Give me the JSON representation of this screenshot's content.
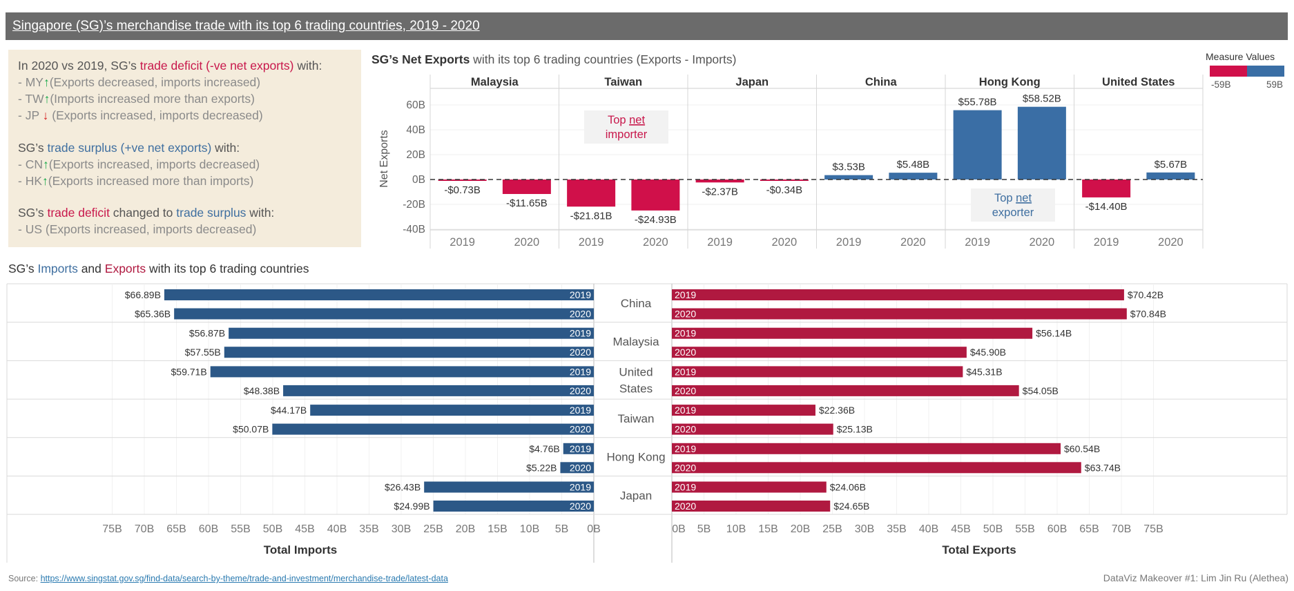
{
  "title": "Singapore (SG)’s merchandise trade with its top 6 trading countries, 2019 - 2020",
  "summary": {
    "deficit_intro": {
      "pre": "In 2020 vs 2019, SG’s ",
      "highlight": "trade deficit (-ve net exports)",
      "post": " with:"
    },
    "deficit_items": [
      {
        "code": "- MY",
        "arrow": "↑",
        "text": "(Exports decreased, imports increased)"
      },
      {
        "code": "- TW",
        "arrow": "↑",
        "text": "(Imports increased more than exports)"
      },
      {
        "code": "- JP",
        "arrow": "↓",
        "text": "(Exports increased, imports decreased)"
      }
    ],
    "surplus_intro": {
      "pre": "SG’s ",
      "highlight": "trade surplus (+ve net exports)",
      "post": " with:"
    },
    "surplus_items": [
      {
        "code": "- CN",
        "arrow": "↑",
        "text": "(Exports increased, imports decreased)"
      },
      {
        "code": "- HK",
        "arrow": "↑",
        "text": "(Exports increased more than imports)"
      }
    ],
    "change_intro": {
      "pre": "SG’s ",
      "hl1": "trade deficit",
      "mid": " changed to ",
      "hl2": "trade surplus",
      "post": " with:"
    },
    "change_item": "- US (Exports increased, imports decreased)"
  },
  "net_exports_title": {
    "bold": "SG’s Net Exports",
    "rest": " with its top 6 trading countries (Exports - Imports)"
  },
  "legend": {
    "title": "Measure Values",
    "min_label": "-59B",
    "max_label": "59B",
    "neg_color": "#d0104a",
    "pos_color": "#3a6ea5"
  },
  "main_title": {
    "pre": "SG’s ",
    "imports": "Imports",
    "mid": " and ",
    "exports": "Exports",
    "post": " with its top 6 trading countries"
  },
  "colors": {
    "import_bar": "#2c5887",
    "export_bar": "#b01940",
    "net_neg": "#d0104a",
    "net_pos": "#3a6ea5",
    "annot_red": "#c8174b",
    "annot_blue": "#3f6fa0"
  },
  "chart_data": [
    {
      "type": "bar",
      "title": "SG’s Net Exports with its top 6 trading countries (Exports - Imports)",
      "ylabel": "Net Exports",
      "ylim": [
        -45,
        75
      ],
      "yticks": [
        "60B",
        "40B",
        "20B",
        "0B",
        "-20B",
        "-40B"
      ],
      "ytick_values": [
        60,
        40,
        20,
        0,
        -20,
        -40
      ],
      "groups": [
        "Malaysia",
        "Taiwan",
        "Japan",
        "China",
        "Hong Kong",
        "United States"
      ],
      "categories": [
        "2019",
        "2020"
      ],
      "values": [
        [
          -0.73,
          -11.65
        ],
        [
          -21.81,
          -24.93
        ],
        [
          -2.37,
          -0.34
        ],
        [
          3.53,
          5.48
        ],
        [
          55.78,
          58.52
        ],
        [
          -14.4,
          5.67
        ]
      ],
      "labels": [
        [
          "-$0.73B",
          "-$11.65B"
        ],
        [
          "-$21.81B",
          "-$24.93B"
        ],
        [
          "-$2.37B",
          "-$0.34B"
        ],
        [
          "$3.53B",
          "$5.48B"
        ],
        [
          "$55.78B",
          "$58.52B"
        ],
        [
          "-$14.40B",
          "$5.67B"
        ]
      ],
      "annotations": [
        {
          "pre": "Top ",
          "underline": "net",
          "line2": "importer",
          "color": "red"
        },
        {
          "pre": "Top ",
          "underline": "net",
          "line2": "exporter",
          "color": "blue"
        }
      ]
    },
    {
      "type": "bar",
      "title": "Total Imports",
      "xlabel": "Total Imports",
      "xlim": [
        0,
        75
      ],
      "orientation": "horizontal-reversed",
      "countries": [
        "China",
        "Malaysia",
        "United States",
        "Taiwan",
        "Hong Kong",
        "Japan"
      ],
      "categories": [
        "2019",
        "2020"
      ],
      "values": [
        [
          66.89,
          65.36
        ],
        [
          56.87,
          57.55
        ],
        [
          59.71,
          48.38
        ],
        [
          44.17,
          50.07
        ],
        [
          4.76,
          5.22
        ],
        [
          26.43,
          24.99
        ]
      ],
      "labels": [
        [
          "$66.89B",
          "$65.36B"
        ],
        [
          "$56.87B",
          "$57.55B"
        ],
        [
          "$59.71B",
          "$48.38B"
        ],
        [
          "$44.17B",
          "$50.07B"
        ],
        [
          "$4.76B",
          "$5.22B"
        ],
        [
          "$26.43B",
          "$24.99B"
        ]
      ],
      "ticks": [
        "75B",
        "70B",
        "65B",
        "60B",
        "55B",
        "50B",
        "45B",
        "40B",
        "35B",
        "30B",
        "25B",
        "20B",
        "15B",
        "10B",
        "5B",
        "0B"
      ],
      "tick_values": [
        75,
        70,
        65,
        60,
        55,
        50,
        45,
        40,
        35,
        30,
        25,
        20,
        15,
        10,
        5,
        0
      ]
    },
    {
      "type": "bar",
      "title": "Total Exports",
      "xlabel": "Total Exports",
      "xlim": [
        0,
        75
      ],
      "orientation": "horizontal",
      "countries": [
        "China",
        "Malaysia",
        "United States",
        "Taiwan",
        "Hong Kong",
        "Japan"
      ],
      "country_lines": [
        [
          "China"
        ],
        [
          "Malaysia"
        ],
        [
          "United",
          "States"
        ],
        [
          "Taiwan"
        ],
        [
          "Hong Kong"
        ],
        [
          "Japan"
        ]
      ],
      "categories": [
        "2019",
        "2020"
      ],
      "values": [
        [
          70.42,
          70.84
        ],
        [
          56.14,
          45.9
        ],
        [
          45.31,
          54.05
        ],
        [
          22.36,
          25.13
        ],
        [
          60.54,
          63.74
        ],
        [
          24.06,
          24.65
        ]
      ],
      "labels": [
        [
          "$70.42B",
          "$70.84B"
        ],
        [
          "$56.14B",
          "$45.90B"
        ],
        [
          "$45.31B",
          "$54.05B"
        ],
        [
          "$22.36B",
          "$25.13B"
        ],
        [
          "$60.54B",
          "$63.74B"
        ],
        [
          "$24.06B",
          "$24.65B"
        ]
      ],
      "ticks": [
        "0B",
        "5B",
        "10B",
        "15B",
        "20B",
        "25B",
        "30B",
        "35B",
        "40B",
        "45B",
        "50B",
        "55B",
        "60B",
        "65B",
        "70B",
        "75B"
      ],
      "tick_values": [
        0,
        5,
        10,
        15,
        20,
        25,
        30,
        35,
        40,
        45,
        50,
        55,
        60,
        65,
        70,
        75
      ]
    }
  ],
  "footer": {
    "source_label": "Source: ",
    "source_url": "https://www.singstat.gov.sg/find-data/search-by-theme/trade-and-investment/merchandise-trade/latest-data",
    "credit": "DataViz Makeover #1: Lim Jin Ru (Alethea)"
  }
}
